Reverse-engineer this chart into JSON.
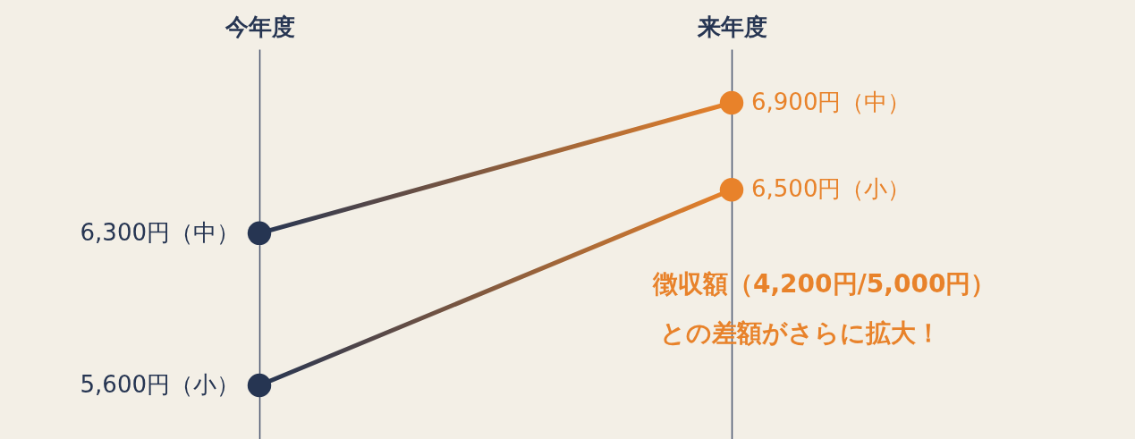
{
  "chart_data": {
    "type": "line",
    "categories": [
      "今年度",
      "来年度"
    ],
    "series": [
      {
        "colors": [
          "#263552",
          "#e8822a"
        ],
        "values": [
          6300,
          6900
        ],
        "value_labels": [
          "6,300円（中）",
          "6,900円（中）"
        ]
      },
      {
        "colors": [
          "#263552",
          "#e8822a"
        ],
        "values": [
          5600,
          6500
        ],
        "value_labels": [
          "5,600円（小）",
          "6,500円（小）"
        ]
      }
    ],
    "annotations": [
      "徴収額（4,200円/5,000円）",
      "との差額がさらに拡大！"
    ],
    "marker": "circle",
    "grid": "x"
  }
}
